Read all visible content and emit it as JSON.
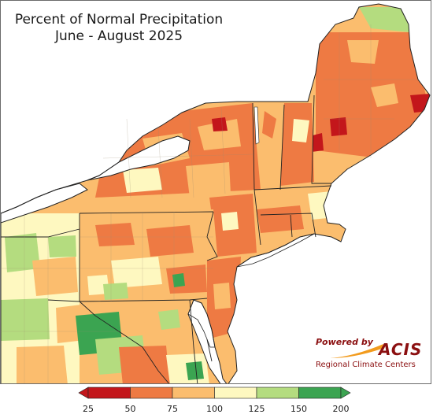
{
  "title": "Percent of Normal Precipitation",
  "subtitle": "June - August 2025",
  "logo": {
    "powered_by": "Powered by",
    "brand": "ACIS",
    "tagline": "Regional Climate Centers"
  },
  "legend": {
    "ticks": [
      "25",
      "50",
      "75",
      "100",
      "125",
      "150",
      "200"
    ],
    "bins": [
      {
        "from": 25,
        "to": 50,
        "color": "#c3161b"
      },
      {
        "from": 50,
        "to": 75,
        "color": "#ee7a43"
      },
      {
        "from": 75,
        "to": 100,
        "color": "#fbbd6e"
      },
      {
        "from": 100,
        "to": 125,
        "color": "#fef8c0"
      },
      {
        "from": 125,
        "to": 150,
        "color": "#b4dc7f"
      },
      {
        "from": 150,
        "to": 200,
        "color": "#3ba451"
      }
    ],
    "low_arrow_color": "#c3161b",
    "high_arrow_color": "#3ba451"
  },
  "colors": {
    "water": "#ffffff",
    "boundary": "#222222",
    "county_line": "#9a8b70"
  }
}
